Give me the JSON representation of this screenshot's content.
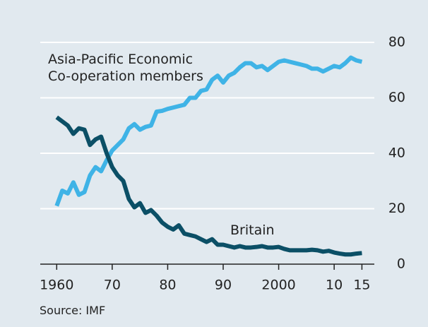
{
  "chart_data": {
    "type": "line",
    "source": "Source: IMF",
    "x": [
      1960,
      1961,
      1962,
      1963,
      1964,
      1965,
      1966,
      1967,
      1968,
      1969,
      1970,
      1971,
      1972,
      1973,
      1974,
      1975,
      1976,
      1977,
      1978,
      1979,
      1980,
      1981,
      1982,
      1983,
      1984,
      1985,
      1986,
      1987,
      1988,
      1989,
      1990,
      1991,
      1992,
      1993,
      1994,
      1995,
      1996,
      1997,
      1998,
      1999,
      2000,
      2001,
      2002,
      2003,
      2004,
      2005,
      2006,
      2007,
      2008,
      2009,
      2010,
      2011,
      2012,
      2013,
      2014,
      2015
    ],
    "series": [
      {
        "name": "Asia-Pacific Economic Co-operation members",
        "color": "#3fb3e6",
        "values": [
          21,
          26.5,
          25.5,
          29.5,
          25,
          26,
          32,
          35,
          33.5,
          37.5,
          41,
          43,
          45,
          49,
          50.5,
          48.5,
          49.5,
          50,
          55,
          55.3,
          56,
          56.5,
          57,
          57.5,
          60,
          60,
          62.5,
          63,
          66.5,
          68,
          65.5,
          68,
          69,
          71,
          72.5,
          72.5,
          71,
          71.5,
          70,
          71.5,
          73,
          73.5,
          73,
          72.5,
          72,
          71.5,
          70.5,
          70.5,
          69.5,
          70.5,
          71.5,
          71,
          72.5,
          74.5,
          73.5,
          73
        ]
      },
      {
        "name": "Britain",
        "color": "#0b4f66",
        "values": [
          53,
          51.5,
          50,
          47,
          49,
          48.5,
          43,
          45,
          46,
          40,
          35,
          32,
          30,
          23.5,
          20.5,
          22,
          18.5,
          19.5,
          17.5,
          15,
          13.5,
          12.5,
          14,
          11,
          10.5,
          10,
          9,
          8,
          9,
          7,
          7,
          6.5,
          6,
          6.5,
          6,
          6,
          6.2,
          6.5,
          6,
          6,
          6.2,
          5.5,
          5,
          5,
          5,
          5,
          5.2,
          5,
          4.5,
          4.8,
          4.2,
          3.8,
          3.5,
          3.5,
          3.8,
          4
        ]
      }
    ],
    "xlim": [
      1955,
      2018
    ],
    "xticks": [
      1960,
      {
        "value": 1970,
        "label": "70"
      },
      {
        "value": 1980,
        "label": "80"
      },
      {
        "value": 1990,
        "label": "90"
      },
      2000,
      {
        "value": 2010,
        "label": "10"
      },
      {
        "value": 2015,
        "label": "15"
      }
    ],
    "ylim": [
      0,
      80
    ],
    "yticks": [
      0,
      20,
      40,
      60,
      80
    ],
    "grid": true
  }
}
